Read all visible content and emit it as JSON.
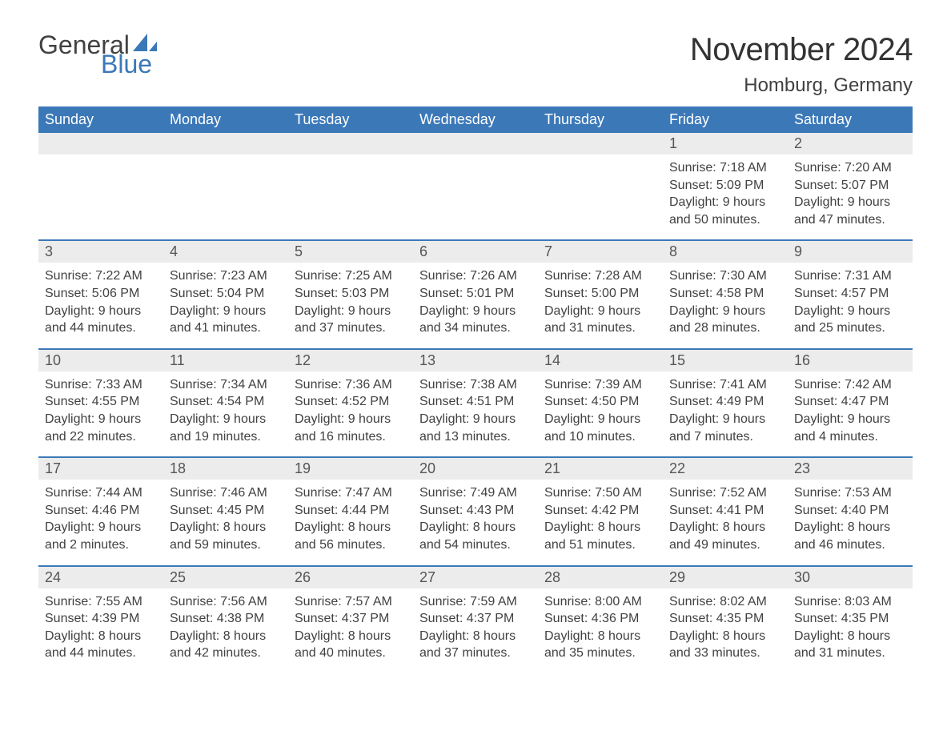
{
  "brand": {
    "word1": "General",
    "word2": "Blue",
    "text_color": "#414141",
    "blue": "#3b78b8"
  },
  "title": {
    "month": "November 2024",
    "location": "Homburg, Germany",
    "title_fontsize": 40,
    "location_fontsize": 24
  },
  "calendar": {
    "header_bg": "#3b78b8",
    "header_text_color": "#ffffff",
    "daynum_bg": "#ececec",
    "body_text_color": "#414141",
    "week_divider_color": "#3b78b8",
    "day_headers": [
      "Sunday",
      "Monday",
      "Tuesday",
      "Wednesday",
      "Thursday",
      "Friday",
      "Saturday"
    ],
    "weeks": [
      [
        null,
        null,
        null,
        null,
        null,
        {
          "n": "1",
          "sunrise": "7:18 AM",
          "sunset": "5:09 PM",
          "dl_h": "9",
          "dl_m": "50"
        },
        {
          "n": "2",
          "sunrise": "7:20 AM",
          "sunset": "5:07 PM",
          "dl_h": "9",
          "dl_m": "47"
        }
      ],
      [
        {
          "n": "3",
          "sunrise": "7:22 AM",
          "sunset": "5:06 PM",
          "dl_h": "9",
          "dl_m": "44"
        },
        {
          "n": "4",
          "sunrise": "7:23 AM",
          "sunset": "5:04 PM",
          "dl_h": "9",
          "dl_m": "41"
        },
        {
          "n": "5",
          "sunrise": "7:25 AM",
          "sunset": "5:03 PM",
          "dl_h": "9",
          "dl_m": "37"
        },
        {
          "n": "6",
          "sunrise": "7:26 AM",
          "sunset": "5:01 PM",
          "dl_h": "9",
          "dl_m": "34"
        },
        {
          "n": "7",
          "sunrise": "7:28 AM",
          "sunset": "5:00 PM",
          "dl_h": "9",
          "dl_m": "31"
        },
        {
          "n": "8",
          "sunrise": "7:30 AM",
          "sunset": "4:58 PM",
          "dl_h": "9",
          "dl_m": "28"
        },
        {
          "n": "9",
          "sunrise": "7:31 AM",
          "sunset": "4:57 PM",
          "dl_h": "9",
          "dl_m": "25"
        }
      ],
      [
        {
          "n": "10",
          "sunrise": "7:33 AM",
          "sunset": "4:55 PM",
          "dl_h": "9",
          "dl_m": "22"
        },
        {
          "n": "11",
          "sunrise": "7:34 AM",
          "sunset": "4:54 PM",
          "dl_h": "9",
          "dl_m": "19"
        },
        {
          "n": "12",
          "sunrise": "7:36 AM",
          "sunset": "4:52 PM",
          "dl_h": "9",
          "dl_m": "16"
        },
        {
          "n": "13",
          "sunrise": "7:38 AM",
          "sunset": "4:51 PM",
          "dl_h": "9",
          "dl_m": "13"
        },
        {
          "n": "14",
          "sunrise": "7:39 AM",
          "sunset": "4:50 PM",
          "dl_h": "9",
          "dl_m": "10"
        },
        {
          "n": "15",
          "sunrise": "7:41 AM",
          "sunset": "4:49 PM",
          "dl_h": "9",
          "dl_m": "7"
        },
        {
          "n": "16",
          "sunrise": "7:42 AM",
          "sunset": "4:47 PM",
          "dl_h": "9",
          "dl_m": "4"
        }
      ],
      [
        {
          "n": "17",
          "sunrise": "7:44 AM",
          "sunset": "4:46 PM",
          "dl_h": "9",
          "dl_m": "2"
        },
        {
          "n": "18",
          "sunrise": "7:46 AM",
          "sunset": "4:45 PM",
          "dl_h": "8",
          "dl_m": "59"
        },
        {
          "n": "19",
          "sunrise": "7:47 AM",
          "sunset": "4:44 PM",
          "dl_h": "8",
          "dl_m": "56"
        },
        {
          "n": "20",
          "sunrise": "7:49 AM",
          "sunset": "4:43 PM",
          "dl_h": "8",
          "dl_m": "54"
        },
        {
          "n": "21",
          "sunrise": "7:50 AM",
          "sunset": "4:42 PM",
          "dl_h": "8",
          "dl_m": "51"
        },
        {
          "n": "22",
          "sunrise": "7:52 AM",
          "sunset": "4:41 PM",
          "dl_h": "8",
          "dl_m": "49"
        },
        {
          "n": "23",
          "sunrise": "7:53 AM",
          "sunset": "4:40 PM",
          "dl_h": "8",
          "dl_m": "46"
        }
      ],
      [
        {
          "n": "24",
          "sunrise": "7:55 AM",
          "sunset": "4:39 PM",
          "dl_h": "8",
          "dl_m": "44"
        },
        {
          "n": "25",
          "sunrise": "7:56 AM",
          "sunset": "4:38 PM",
          "dl_h": "8",
          "dl_m": "42"
        },
        {
          "n": "26",
          "sunrise": "7:57 AM",
          "sunset": "4:37 PM",
          "dl_h": "8",
          "dl_m": "40"
        },
        {
          "n": "27",
          "sunrise": "7:59 AM",
          "sunset": "4:37 PM",
          "dl_h": "8",
          "dl_m": "37"
        },
        {
          "n": "28",
          "sunrise": "8:00 AM",
          "sunset": "4:36 PM",
          "dl_h": "8",
          "dl_m": "35"
        },
        {
          "n": "29",
          "sunrise": "8:02 AM",
          "sunset": "4:35 PM",
          "dl_h": "8",
          "dl_m": "33"
        },
        {
          "n": "30",
          "sunrise": "8:03 AM",
          "sunset": "4:35 PM",
          "dl_h": "8",
          "dl_m": "31"
        }
      ]
    ],
    "labels": {
      "sunrise": "Sunrise: ",
      "sunset": "Sunset: ",
      "daylight_prefix": "Daylight: ",
      "hours_word": " hours",
      "and_word": "and ",
      "minutes_word": " minutes."
    }
  }
}
